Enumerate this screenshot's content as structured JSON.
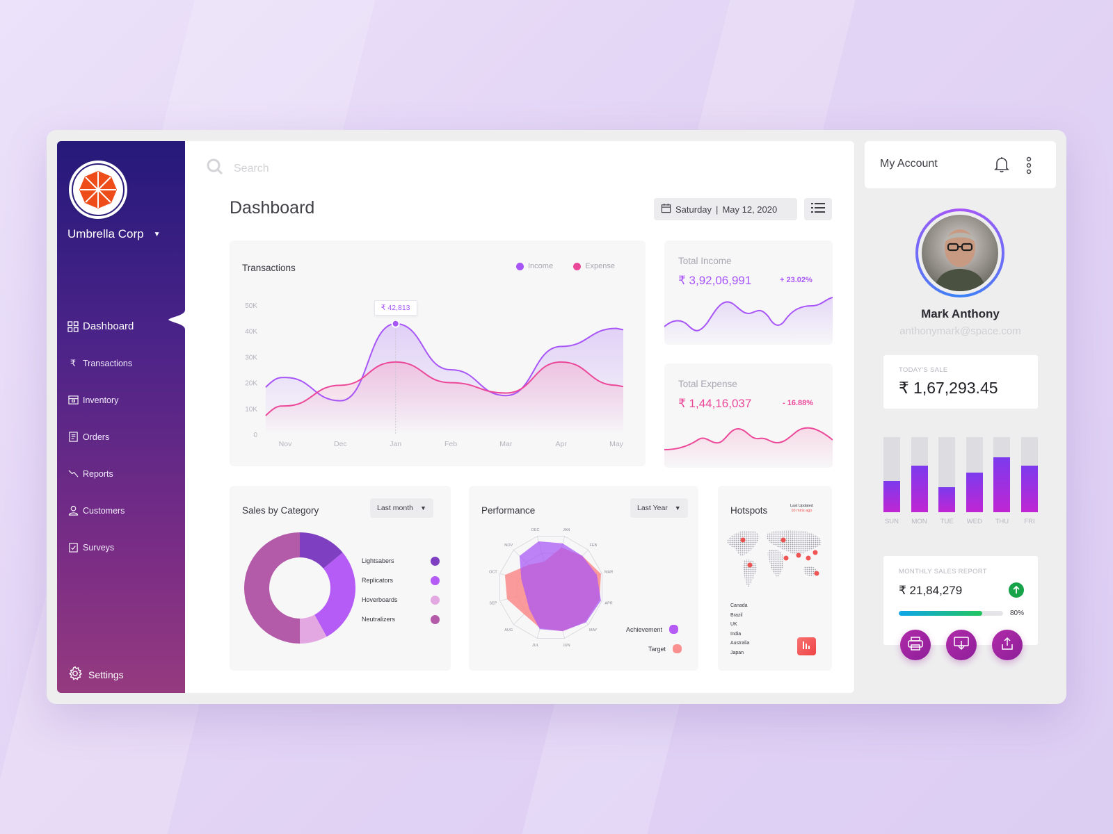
{
  "sidebar": {
    "company": "Umbrella Corp",
    "nav": [
      {
        "label": "Dashboard",
        "icon": "grid-icon",
        "active": true
      },
      {
        "label": "Transactions",
        "icon": "rupee-icon"
      },
      {
        "label": "Inventory",
        "icon": "box-icon"
      },
      {
        "label": "Orders",
        "icon": "clipboard-icon"
      },
      {
        "label": "Reports",
        "icon": "chart-line-icon"
      },
      {
        "label": "Customers",
        "icon": "user-icon"
      },
      {
        "label": "Surveys",
        "icon": "checklist-icon"
      }
    ],
    "settings": "Settings"
  },
  "search": {
    "placeholder": "Search"
  },
  "header": {
    "title": "Dashboard",
    "day": "Saturday",
    "date": "May 12, 2020"
  },
  "transactions": {
    "title": "Transactions",
    "legend_income": "Income",
    "legend_expense": "Expense",
    "tooltip": "₹ 42,813",
    "y_ticks": [
      "50K",
      "40K",
      "30K",
      "20K",
      "10K",
      "0"
    ],
    "x_ticks": [
      "Nov",
      "Dec",
      "Jan",
      "Feb",
      "Mar",
      "Apr",
      "May"
    ]
  },
  "total_income": {
    "label": "Total Income",
    "value": "₹ 3,92,06,991",
    "change": "+ 23.02%"
  },
  "total_expense": {
    "label": "Total Expense",
    "value": "₹ 1,44,16,037",
    "change": "- 16.88%"
  },
  "sales_by_category": {
    "title": "Sales by Category",
    "filter": "Last month",
    "items": [
      "Lightsabers",
      "Replicators",
      "Hoverboards",
      "Neutralizers"
    ]
  },
  "performance": {
    "title": "Performance",
    "filter": "Last Year",
    "months": [
      "JAN",
      "FEB",
      "MAR",
      "APR",
      "MAY",
      "JUN",
      "JUL",
      "AUG",
      "SEP",
      "OCT",
      "NOV",
      "DEC"
    ],
    "legend_achievement": "Achievement",
    "legend_target": "Target"
  },
  "hotspots": {
    "title": "Hotspots",
    "updated_label": "Last Updated",
    "updated_time": "10 mins ago",
    "countries": [
      "Canada",
      "Brazil",
      "UK",
      "India",
      "Australia",
      "Japan"
    ]
  },
  "account": {
    "title": "My Account",
    "name": "Mark Anthony",
    "email": "anthonymark@space.com"
  },
  "todays_sale": {
    "label": "TODAY'S SALE",
    "value": "₹ 1,67,293.45"
  },
  "weekly": {
    "days": [
      "SUN",
      "MON",
      "TUE",
      "WED",
      "THU",
      "FRI"
    ],
    "levels": [
      0.42,
      0.62,
      0.33,
      0.53,
      0.73,
      0.62
    ]
  },
  "monthly_report": {
    "label": "MONTHLY SALES REPORT",
    "value": "₹ 21,84,279",
    "progress_label": "80%",
    "progress": 0.8
  },
  "chart_data": [
    {
      "type": "line",
      "title": "Transactions",
      "categories": [
        "Nov",
        "Dec",
        "Jan",
        "Feb",
        "Mar",
        "Apr",
        "May"
      ],
      "ylim": [
        0,
        50000
      ],
      "series": [
        {
          "name": "Income",
          "values": [
            22000,
            13000,
            42813,
            25000,
            15000,
            34000,
            41000
          ]
        },
        {
          "name": "Expense",
          "values": [
            11000,
            19000,
            28000,
            20000,
            16000,
            28000,
            19000
          ]
        }
      ]
    },
    {
      "type": "pie",
      "title": "Sales by Category",
      "categories": [
        "Lightsabers",
        "Replicators",
        "Hoverboards",
        "Neutralizers"
      ],
      "values": [
        14,
        28,
        8,
        50
      ]
    },
    {
      "type": "bar",
      "categories": [
        "SUN",
        "MON",
        "TUE",
        "WED",
        "THU",
        "FRI"
      ],
      "values": [
        0.42,
        0.62,
        0.33,
        0.53,
        0.73,
        0.62
      ]
    }
  ],
  "colors": {
    "accent": "#a855f7",
    "income": "#a855f7",
    "expense": "#ec4899",
    "positive": "#16a34a"
  }
}
